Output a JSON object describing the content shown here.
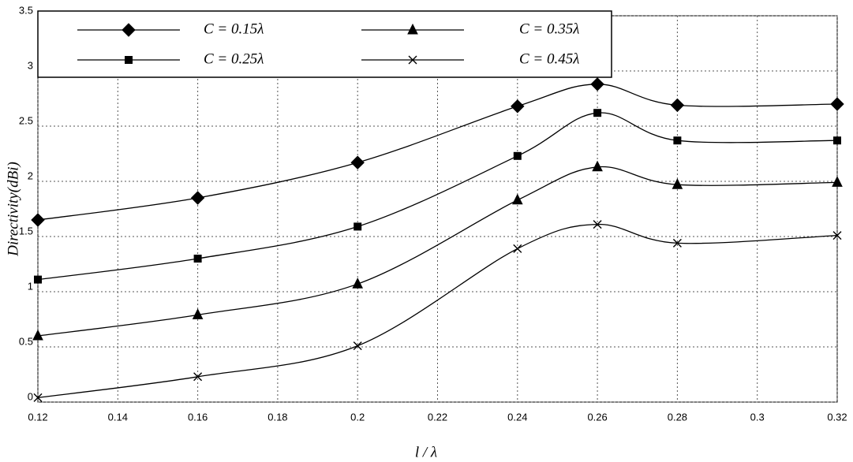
{
  "chart_data": {
    "type": "line",
    "x_label": "l / λ",
    "y_label": "Directivity(dBi)",
    "x": [
      0.12,
      0.16,
      0.2,
      0.24,
      0.26,
      0.28,
      0.32
    ],
    "series": [
      {
        "name": "C = 0.15λ",
        "color": "#000000",
        "marker": "diamond",
        "values": [
          1.65,
          1.85,
          2.17,
          2.68,
          2.88,
          2.69,
          2.7
        ]
      },
      {
        "name": "C = 0.35λ",
        "color": "#000000",
        "marker": "triangle",
        "values": [
          0.6,
          0.79,
          1.07,
          1.83,
          2.13,
          1.97,
          1.99
        ]
      },
      {
        "name": "C = 0.25λ",
        "color": "#000000",
        "marker": "square",
        "values": [
          1.11,
          1.3,
          1.59,
          2.23,
          2.62,
          2.37,
          2.37
        ]
      },
      {
        "name": "C = 0.45λ",
        "color": "#000000",
        "marker": "x",
        "values": [
          0.04,
          0.23,
          0.51,
          1.39,
          1.61,
          1.44,
          1.51
        ]
      }
    ],
    "xlim": [
      0.12,
      0.32
    ],
    "xticks": [
      0.12,
      0.14,
      0.16,
      0.18,
      0.2,
      0.22,
      0.24,
      0.26,
      0.28,
      0.3,
      0.32
    ],
    "ylim": [
      0,
      3.5
    ],
    "yticks": [
      0,
      0.5,
      1,
      1.5,
      2,
      2.5,
      3,
      3.5
    ],
    "grid": true,
    "legend": "top-left",
    "smooth": true
  }
}
